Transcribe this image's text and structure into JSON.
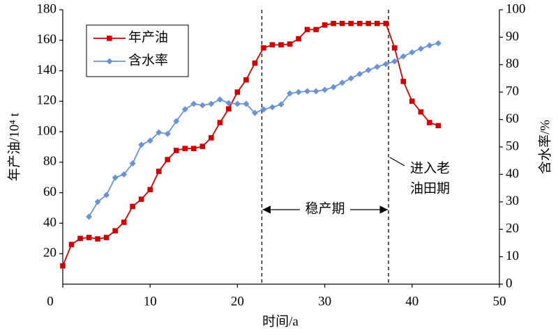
{
  "chart_data": {
    "type": "line",
    "x_label": "时间/a",
    "y_label": "年产油/10⁴ t",
    "y2_label": "含水率/%",
    "xlim": [
      0,
      50
    ],
    "xticks": [
      0,
      10,
      20,
      30,
      40,
      50
    ],
    "ylim": [
      0,
      180
    ],
    "yticks": [
      20,
      40,
      60,
      80,
      100,
      120,
      140,
      160,
      180
    ],
    "y2lim": [
      0,
      100
    ],
    "y2ticks": [
      0,
      10,
      20,
      30,
      40,
      50,
      60,
      70,
      80,
      90,
      100
    ],
    "legend": "top-left",
    "reference_lines": [
      22.8,
      37.3
    ],
    "annotations": [
      {
        "text": "稳产期"
      },
      {
        "text": [
          "进入老",
          "油田期"
        ]
      }
    ],
    "series": [
      {
        "name": "年产油",
        "color": "#cc0000",
        "marker": "square",
        "x": [
          0,
          1,
          2,
          3,
          4,
          5,
          6,
          7,
          8,
          9,
          10,
          11,
          12,
          13,
          14,
          15,
          16,
          17,
          18,
          19,
          20,
          21,
          22,
          23,
          24,
          25,
          26,
          27,
          28,
          29,
          30,
          31,
          32,
          33,
          34,
          35,
          36,
          37,
          38,
          39,
          40,
          41,
          42,
          43
        ],
        "values": [
          12,
          26,
          30,
          30.6,
          29.7,
          30.6,
          35,
          40.6,
          51,
          55.7,
          62,
          74,
          81.7,
          87.7,
          89,
          89,
          90.4,
          96,
          106,
          115,
          126,
          134,
          145,
          155,
          157,
          157,
          157.5,
          161,
          167,
          167,
          170,
          171,
          171,
          171,
          171,
          171,
          171,
          171,
          155,
          133,
          120,
          113,
          106,
          104
        ]
      },
      {
        "name": "含水率",
        "color": "#6a93d4",
        "marker": "diamond",
        "axis": "y2",
        "x": [
          3,
          4,
          5,
          6,
          7,
          8,
          9,
          10,
          11,
          12,
          13,
          14,
          15,
          16,
          17,
          18,
          19,
          20,
          21,
          22,
          23,
          24,
          25,
          26,
          27,
          28,
          29,
          30,
          31,
          32,
          33,
          34,
          35,
          36,
          37,
          38,
          39,
          40,
          41,
          42,
          43
        ],
        "values": [
          24.6,
          30,
          32.5,
          38.8,
          40,
          44,
          50.8,
          52.3,
          55.3,
          54.8,
          59.4,
          63.7,
          65.7,
          65.2,
          65.7,
          67.3,
          66,
          65.7,
          65.7,
          62.4,
          63.7,
          64.5,
          65.5,
          69.5,
          70,
          70.3,
          70.3,
          70.8,
          71.8,
          73.4,
          75,
          76.6,
          78,
          79.2,
          80.2,
          81.2,
          83,
          84.5,
          85.8,
          87,
          87.8
        ]
      }
    ]
  }
}
